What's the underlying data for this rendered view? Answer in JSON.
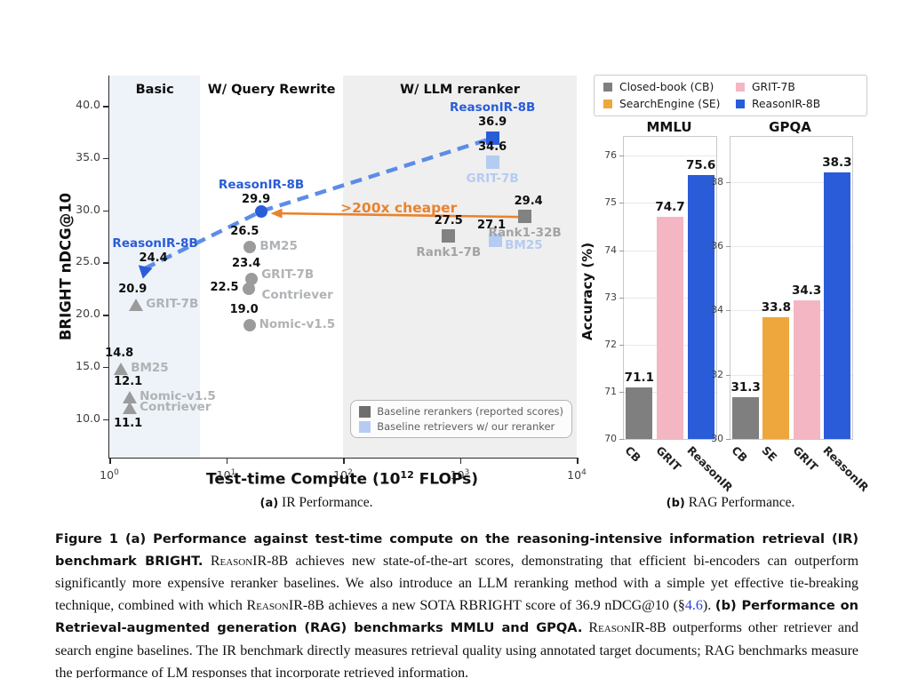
{
  "colors": {
    "reasonir_blue": "#2a5cd9",
    "light_blue": "#b5cbf2",
    "trend_blue": "#5d8ce8",
    "orange": "#e8832e",
    "bar_orange": "#eea73c",
    "pink": "#f4b6c2",
    "gray_bar": "#7f7f7f",
    "gray_marker": "#9b9b9b",
    "gray_square": "#828282",
    "gray_label": "#b0b3b6",
    "rank_label": "#a3a3a3",
    "basic_bg": "#edf3f8",
    "reranker_bg": "#efefef",
    "link_blue": "#2b3fd0"
  },
  "chart_data": [
    {
      "type": "scatter",
      "xlabel": "Test-time Compute (10^12 FLOPs)",
      "xlabel_prefix": "Test-time Compute (10",
      "xlabel_sup": "12",
      "xlabel_suffix": " FLOPs)",
      "ylabel": "BRIGHT nDCG@10",
      "xscale": "log",
      "xlim": [
        1,
        10000
      ],
      "ylim": [
        6.3,
        42.9
      ],
      "yticks": [
        10,
        15,
        20,
        25,
        30,
        35,
        40
      ],
      "xtick_exponents": [
        0,
        1,
        2,
        3,
        4
      ],
      "regions": [
        {
          "label": "Basic",
          "x0": 1,
          "x1": 6,
          "bg": "#edf3f8"
        },
        {
          "label": "W/ Query Rewrite",
          "x0": 6,
          "x1": 100,
          "bg": "#ffffff"
        },
        {
          "label": "W/ LLM reranker",
          "x0": 100,
          "x1": 10000,
          "bg": "#efefef"
        }
      ],
      "points": [
        {
          "group": "Basic",
          "name": "ReasonIR-8B",
          "value": 24.4,
          "x": 2.0,
          "marker": "arrowhead",
          "color": "reasonir_blue",
          "labelColor": "reasonir_blue",
          "vpos": "above",
          "vdx": 10,
          "vdy": 6,
          "npos": "stack",
          "ndx": 12,
          "ndy": 6
        },
        {
          "group": "Basic",
          "name": "GRIT-7B",
          "value": 20.9,
          "x": 1.7,
          "marker": "triangle",
          "color": "gray_marker",
          "labelColor": "gray_label",
          "vpos": "above",
          "vdx": -4,
          "npos": "right"
        },
        {
          "group": "Basic",
          "name": "BM25",
          "value": 14.8,
          "x": 1.26,
          "marker": "triangle",
          "color": "gray_marker",
          "labelColor": "gray_label",
          "vpos": "above",
          "vdx": -2,
          "npos": "right"
        },
        {
          "group": "Basic",
          "name": "Nomic-v1.5",
          "value": 12.1,
          "x": 1.5,
          "marker": "triangle",
          "color": "gray_marker",
          "labelColor": "gray_label",
          "vpos": "above",
          "vdx": -2,
          "npos": "right"
        },
        {
          "group": "Basic",
          "name": "Contriever",
          "value": 11.1,
          "x": 1.5,
          "marker": "triangle",
          "color": "gray_marker",
          "labelColor": "gray_label",
          "vpos": "below",
          "vdx": -2,
          "npos": "right"
        },
        {
          "group": "W/ Query Rewrite",
          "name": "ReasonIR-8B",
          "value": 29.9,
          "x": 20,
          "marker": "circle",
          "color": "reasonir_blue",
          "labelColor": "reasonir_blue",
          "vpos": "above",
          "vdx": -6,
          "vdy": 4,
          "npos": "stack",
          "ndy": 4
        },
        {
          "group": "W/ Query Rewrite",
          "name": "BM25",
          "value": 26.5,
          "x": 16,
          "marker": "circle",
          "color": "gray_marker",
          "labelColor": "gray_label",
          "vpos": "above",
          "vdx": -6,
          "npos": "right"
        },
        {
          "group": "W/ Query Rewrite",
          "name": "GRIT-7B",
          "value": 23.4,
          "x": 16.5,
          "marker": "circle",
          "color": "gray_marker",
          "labelColor": "gray_label",
          "vpos": "above",
          "vdx": -6,
          "npos": "right",
          "ndy": -4
        },
        {
          "group": "W/ Query Rewrite",
          "name": "Contriever",
          "value": 22.5,
          "x": 15.5,
          "marker": "circle",
          "color": "gray_marker",
          "labelColor": "gray_label",
          "vpos": "left",
          "npos": "right",
          "ndx": 4,
          "ndy": 8
        },
        {
          "group": "W/ Query Rewrite",
          "name": "Nomic-v1.5",
          "value": 19.0,
          "x": 15.8,
          "marker": "circle",
          "color": "gray_marker",
          "labelColor": "gray_label",
          "vpos": "above",
          "vdx": -6,
          "npos": "right"
        },
        {
          "group": "W/ LLM reranker",
          "name": "ReasonIR-8B",
          "value": 36.9,
          "x": 1900,
          "marker": "square",
          "color": "reasonir_blue",
          "labelColor": "reasonir_blue",
          "vpos": "above",
          "npos": "stack"
        },
        {
          "group": "W/ LLM reranker",
          "name": "GRIT-7B",
          "value": 34.6,
          "x": 1900,
          "marker": "square",
          "color": "light_blue",
          "labelColor": "light_blue",
          "vpos": "above",
          "npos": "below"
        },
        {
          "group": "W/ LLM reranker",
          "name": "Rank1-7B",
          "value": 27.5,
          "x": 800,
          "marker": "square",
          "color": "gray_square",
          "labelColor": "rank_label",
          "vpos": "above",
          "npos": "below"
        },
        {
          "group": "W/ LLM reranker",
          "name": "BM25",
          "value": 27.1,
          "x": 2000,
          "marker": "square",
          "color": "light_blue",
          "labelColor": "light_blue",
          "vpos": "above",
          "vdx": -4,
          "npos": "right",
          "ndy": 6
        },
        {
          "group": "W/ LLM reranker",
          "name": "Rank1-32B",
          "value": 29.4,
          "x": 3600,
          "marker": "square",
          "color": "gray_square",
          "labelColor": "rank_label",
          "vpos": "above",
          "vdx": 4,
          "npos": "below"
        }
      ],
      "trend": {
        "points": [
          [
            2.0,
            24.4
          ],
          [
            20,
            29.9
          ],
          [
            1900,
            36.9
          ]
        ],
        "style": "dashed",
        "color": "trend_blue"
      },
      "arrow": {
        "from_x": 3400,
        "from_y": 29.35,
        "to_x": 24,
        "to_y": 29.7,
        "label": ">200x cheaper",
        "label_x": 300,
        "label_y": 31.0,
        "color": "orange"
      },
      "legend": [
        {
          "label": "Baseline rerankers (reported scores)",
          "color": "#6e6e6e"
        },
        {
          "label": "Baseline retrievers w/ our reranker",
          "color": "light_blue"
        }
      ]
    },
    {
      "type": "bar",
      "title": "MMLU",
      "ylabel": "Accuracy (%)",
      "categories": [
        "CB",
        "GRIT",
        "ReasonIR"
      ],
      "values": [
        71.1,
        74.7,
        75.6
      ],
      "bar_colors": [
        "gray_bar",
        "pink",
        "reasonir_blue"
      ],
      "ylim": [
        70,
        76.4
      ],
      "yticks": [
        70,
        71,
        72,
        73,
        74,
        75,
        76
      ]
    },
    {
      "type": "bar",
      "title": "GPQA",
      "ylabel": "Accuracy (%)",
      "categories": [
        "CB",
        "SE",
        "GRIT",
        "ReasonIR"
      ],
      "values": [
        31.3,
        33.8,
        34.3,
        38.3
      ],
      "bar_colors": [
        "gray_bar",
        "bar_orange",
        "pink",
        "reasonir_blue"
      ],
      "ylim": [
        30,
        39.4
      ],
      "yticks": [
        30,
        32,
        34,
        36,
        38
      ]
    }
  ],
  "rag": {
    "legend": [
      {
        "label": "Closed-book (CB)",
        "color": "gray_bar"
      },
      {
        "label": "SearchEngine (SE)",
        "color": "bar_orange"
      },
      {
        "label": "GRIT-7B",
        "color": "pink"
      },
      {
        "label": "ReasonIR-8B",
        "color": "reasonir_blue"
      }
    ]
  },
  "figure": {
    "subcaption_a": {
      "tag": "(a)",
      "text": "IR Performance."
    },
    "subcaption_b": {
      "tag": "(b)",
      "text": "RAG Performance."
    }
  },
  "caption": {
    "segments": [
      {
        "style": "bold",
        "text": "Figure 1  (a) Performance against test-time compute on the reasoning-intensive information retrieval (IR) benchmark BRIGHT."
      },
      {
        "style": "serif",
        "text": " "
      },
      {
        "style": "smallcaps",
        "text": "ReasonIR-8B"
      },
      {
        "style": "serif",
        "text": " achieves new state-of-the-art scores, demonstrating that efficient bi-encoders can outperform significantly more expensive reranker baselines. We also introduce an LLM reranking method with a simple yet effective tie-breaking technique, combined with which "
      },
      {
        "style": "smallcaps",
        "text": "ReasonIR-8B"
      },
      {
        "style": "serif",
        "text": " achieves a new SOTA RBRIGHT score of 36.9 nDCG@10 (§"
      },
      {
        "style": "link",
        "text": "4.6"
      },
      {
        "style": "serif",
        "text": "). "
      },
      {
        "style": "bold",
        "text": "(b) Performance on Retrieval-augmented generation (RAG) benchmarks MMLU and GPQA."
      },
      {
        "style": "serif",
        "text": " "
      },
      {
        "style": "smallcaps",
        "text": "ReasonIR-8B"
      },
      {
        "style": "serif",
        "text": " outperforms other retriever and search engine baselines. The IR benchmark directly measures retrieval quality using annotated target documents; RAG benchmarks measure the performance of LM responses that incorporate retrieved information."
      }
    ]
  }
}
